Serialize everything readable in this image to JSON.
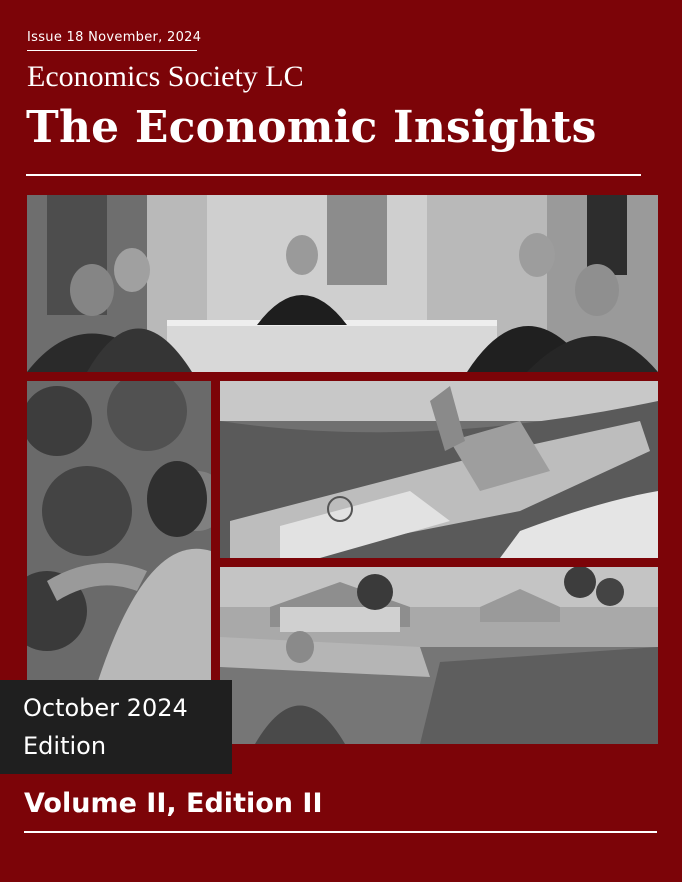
{
  "header": {
    "issue_line": "Issue 18 November, 2024",
    "society": "Economics Society LC",
    "title": "The Economic Insights"
  },
  "images": [
    {
      "name": "meeting-photo"
    },
    {
      "name": "farmer-photo"
    },
    {
      "name": "warship-photo"
    },
    {
      "name": "hurricane-damage-photo"
    }
  ],
  "edition": {
    "line1": "October 2024",
    "line2": "Edition"
  },
  "footer": {
    "volume": "Volume II, Edition II"
  },
  "colors": {
    "background": "#7c0408",
    "edition_box": "#1f1f1f",
    "text": "#ffffff"
  }
}
